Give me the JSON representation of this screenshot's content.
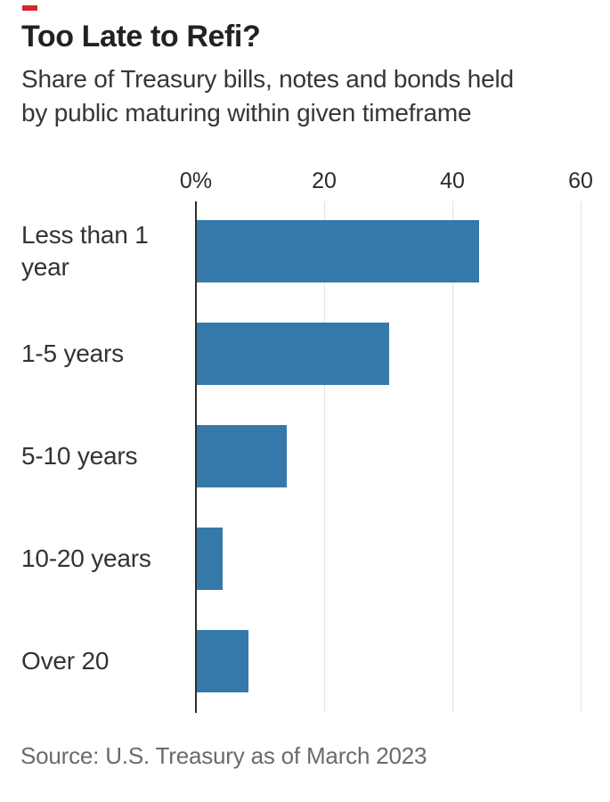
{
  "brand": {
    "accent_color": "#d8262c"
  },
  "header": {
    "title": "Too Late to Refi?",
    "subtitle_lines": [
      "Share of Treasury bills, notes and bonds held",
      "by public maturing within given timeframe"
    ]
  },
  "source_note": "Source: U.S. Treasury as of March 2023",
  "chart_data": {
    "type": "bar",
    "orientation": "horizontal",
    "title": "Too Late to Refi?",
    "subtitle": "Share of Treasury bills, notes and bonds held by public maturing within given timeframe",
    "categories": [
      "Less than 1 year",
      "1-5 years",
      "5-10 years",
      "10-20 years",
      "Over 20"
    ],
    "values": [
      44,
      30,
      14,
      4,
      8
    ],
    "value_unit": "percent",
    "xlim": [
      0,
      60
    ],
    "x_ticks": [
      0,
      20,
      40,
      60
    ],
    "x_tick_labels": [
      "0%",
      "20",
      "40",
      "60"
    ],
    "grid": true,
    "legend": false,
    "bar_color": "#3579ab",
    "axis_line_color": "#2e2e2e",
    "gridline_color": "#e2e2e2",
    "source": "Source: U.S. Treasury as of March 2023"
  }
}
